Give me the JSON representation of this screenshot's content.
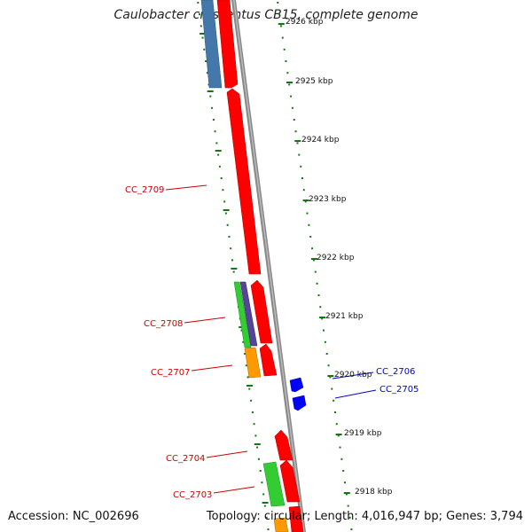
{
  "header": {
    "title": "Caulobacter crescentus CB15, complete genome"
  },
  "footer": {
    "accession": "Accession: NC_002696",
    "summary": "Topology: circular; Length: 4,016,947 bp; Genes: 3,794"
  },
  "scale_labels": [
    "2926 kbp",
    "2925 kbp",
    "2924 kbp",
    "2923 kbp",
    "2922 kbp",
    "2921 kbp",
    "2920 kbp",
    "2919 kbp",
    "2918 kbp"
  ],
  "gene_labels": [
    {
      "name": "CC_2709",
      "color": "#cc0000"
    },
    {
      "name": "CC_2708",
      "color": "#cc0000"
    },
    {
      "name": "CC_2707",
      "color": "#cc0000"
    },
    {
      "name": "CC_2706",
      "color": "#0000cc"
    },
    {
      "name": "CC_2705",
      "color": "#0000cc"
    },
    {
      "name": "CC_2704",
      "color": "#cc0000"
    },
    {
      "name": "CC_2703",
      "color": "#cc0000"
    }
  ],
  "colors": {
    "forward_gene": "#ff0000",
    "reverse_gene": "#0000ff",
    "green_track": "#33cc33",
    "orange_track": "#ff9900",
    "steel_track": "#4477aa",
    "purple_track": "#554499",
    "axis": "#888888",
    "ticks": "#117711"
  }
}
